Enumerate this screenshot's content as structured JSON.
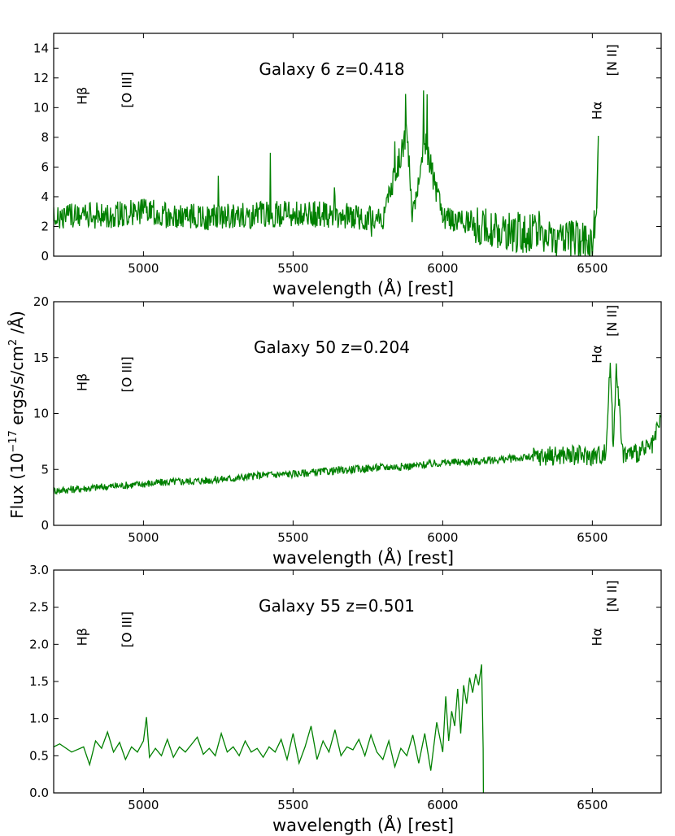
{
  "figure": {
    "shared_ylabel": "Flux (10",
    "shared_ylabel_exp": "−17",
    "shared_ylabel_tail": " ergs/s/cm",
    "shared_ylabel_exp2": "2",
    "shared_ylabel_end": " /Å)",
    "line_color": "#008000"
  },
  "chart_data": [
    {
      "type": "line",
      "title": "Galaxy  6  z=0.418",
      "xlabel": "wavelength (Å) [rest]",
      "ylabel": "",
      "xlim": [
        4700,
        6730
      ],
      "ylim": [
        0,
        15
      ],
      "xticks": [
        5000,
        5500,
        6000,
        6500
      ],
      "xtick_labels": [
        "5000",
        "5500",
        "6000",
        "6500"
      ],
      "yticks": [
        0,
        2,
        4,
        6,
        8,
        10,
        12,
        14
      ],
      "ytick_labels": [
        "0",
        "2",
        "4",
        "6",
        "8",
        "10",
        "12",
        "14"
      ],
      "line_labels": [
        {
          "text": "Hβ",
          "x": 4810,
          "y": 10.8
        },
        {
          "text": "[O III]",
          "x": 4960,
          "y": 11.2
        },
        {
          "text": "Hα",
          "x": 6530,
          "y": 9.8
        },
        {
          "text": "[N II]",
          "x": 6580,
          "y": 13.2
        }
      ],
      "series": [
        {
          "name": "spectrum",
          "start": 4700,
          "end": 6520,
          "step": 4,
          "points_per_unit": 1,
          "x": [
            4700,
            4800,
            4900,
            5000,
            5100,
            5200,
            5300,
            5400,
            5500,
            5600,
            5700,
            5800,
            5880,
            5900,
            5940,
            6000,
            6100,
            6200,
            6300,
            6400,
            6500,
            6515,
            6520
          ],
          "y": [
            2.6,
            2.7,
            2.8,
            3.0,
            2.7,
            2.6,
            2.7,
            2.8,
            2.9,
            2.8,
            2.7,
            2.6,
            8.2,
            2.6,
            7.7,
            2.5,
            2.2,
            1.8,
            1.5,
            1.2,
            1.0,
            3.2,
            8.1
          ]
        }
      ]
    },
    {
      "type": "line",
      "title": "Galaxy 50  z=0.204",
      "xlabel": "wavelength (Å) [rest]",
      "ylabel": "",
      "xlim": [
        4700,
        6730
      ],
      "ylim": [
        0,
        20
      ],
      "xticks": [
        5000,
        5500,
        6000,
        6500
      ],
      "xtick_labels": [
        "5000",
        "5500",
        "6000",
        "6500"
      ],
      "yticks": [
        0,
        5,
        10,
        15,
        20
      ],
      "ytick_labels": [
        "0",
        "5",
        "10",
        "15",
        "20"
      ],
      "line_labels": [
        {
          "text": "Hβ",
          "x": 4810,
          "y": 12.8
        },
        {
          "text": "[O III]",
          "x": 4960,
          "y": 13.5
        },
        {
          "text": "Hα",
          "x": 6530,
          "y": 15.3
        },
        {
          "text": "[N II]",
          "x": 6580,
          "y": 18.3
        }
      ],
      "series": [
        {
          "name": "spectrum",
          "x": [
            4700,
            4800,
            4900,
            5000,
            5100,
            5200,
            5300,
            5400,
            5500,
            5600,
            5700,
            5800,
            5900,
            6000,
            6100,
            6200,
            6300,
            6400,
            6500,
            6545,
            6560,
            6570,
            6580,
            6600,
            6650,
            6700,
            6730
          ],
          "y": [
            3.1,
            3.3,
            3.5,
            3.7,
            3.9,
            4.0,
            4.2,
            4.5,
            4.6,
            4.8,
            5.0,
            5.2,
            5.3,
            5.6,
            5.7,
            5.9,
            6.1,
            6.3,
            6.2,
            6.4,
            14.7,
            6.6,
            14.8,
            6.4,
            6.5,
            7.0,
            9.5
          ]
        }
      ]
    },
    {
      "type": "line",
      "title": "Galaxy 55  z=0.501",
      "xlabel": "wavelength (Å) [rest]",
      "ylabel": "",
      "xlim": [
        4700,
        6730
      ],
      "ylim": [
        0,
        3.0
      ],
      "xticks": [
        5000,
        5500,
        6000,
        6500
      ],
      "xtick_labels": [
        "5000",
        "5500",
        "6000",
        "6500"
      ],
      "yticks": [
        0,
        0.5,
        1.0,
        1.5,
        2.0,
        2.5,
        3.0
      ],
      "ytick_labels": [
        "0.0",
        "0.5",
        "1.0",
        "1.5",
        "2.0",
        "2.5",
        "3.0"
      ],
      "line_labels": [
        {
          "text": "Hβ",
          "x": 4810,
          "y": 2.1
        },
        {
          "text": "[O III]",
          "x": 4960,
          "y": 2.2
        },
        {
          "text": "Hα",
          "x": 6530,
          "y": 2.1
        },
        {
          "text": "[N II]",
          "x": 6580,
          "y": 2.65
        }
      ],
      "series": [
        {
          "name": "spectrum",
          "x": [
            4700,
            4720,
            4760,
            4800,
            4820,
            4840,
            4860,
            4880,
            4900,
            4920,
            4940,
            4960,
            4980,
            5000,
            5010,
            5020,
            5040,
            5060,
            5080,
            5100,
            5120,
            5140,
            5160,
            5180,
            5200,
            5220,
            5240,
            5260,
            5280,
            5300,
            5320,
            5340,
            5360,
            5380,
            5400,
            5420,
            5440,
            5460,
            5480,
            5500,
            5520,
            5540,
            5560,
            5580,
            5600,
            5620,
            5640,
            5660,
            5680,
            5700,
            5720,
            5740,
            5760,
            5780,
            5800,
            5820,
            5840,
            5860,
            5880,
            5900,
            5920,
            5940,
            5960,
            5980,
            6000,
            6010,
            6020,
            6030,
            6040,
            6050,
            6060,
            6070,
            6080,
            6090,
            6100,
            6110,
            6120,
            6130,
            6135,
            6136
          ],
          "y": [
            0.62,
            0.66,
            0.55,
            0.62,
            0.38,
            0.7,
            0.6,
            0.82,
            0.55,
            0.68,
            0.45,
            0.62,
            0.55,
            0.7,
            1.02,
            0.48,
            0.6,
            0.5,
            0.72,
            0.48,
            0.62,
            0.55,
            0.65,
            0.75,
            0.52,
            0.6,
            0.5,
            0.8,
            0.55,
            0.62,
            0.5,
            0.7,
            0.55,
            0.6,
            0.48,
            0.62,
            0.55,
            0.72,
            0.45,
            0.8,
            0.4,
            0.62,
            0.9,
            0.45,
            0.7,
            0.55,
            0.85,
            0.5,
            0.62,
            0.58,
            0.72,
            0.5,
            0.78,
            0.55,
            0.45,
            0.7,
            0.35,
            0.6,
            0.5,
            0.78,
            0.4,
            0.8,
            0.3,
            0.95,
            0.55,
            1.3,
            0.7,
            1.1,
            0.9,
            1.4,
            0.8,
            1.45,
            1.2,
            1.55,
            1.35,
            1.6,
            1.45,
            1.73,
            0.6,
            0.0
          ]
        }
      ]
    }
  ]
}
